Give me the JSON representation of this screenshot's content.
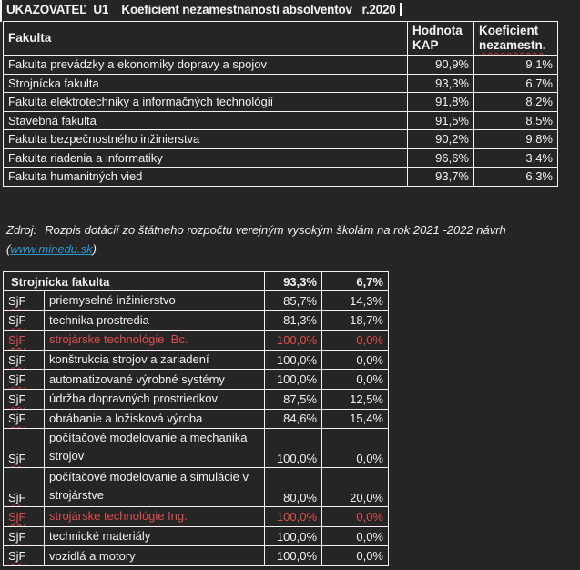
{
  "title": "UKAZOVATEĽ  U1    Koeficient nezamestnanosti absolventov   r.2020",
  "colors": {
    "background": "#252525",
    "text": "#f2f2f2",
    "border": "#f2f2f2",
    "red_text": "#df4f4f",
    "squiggle": "#c33232",
    "link": "#2f9ad2"
  },
  "table1": {
    "headers": {
      "fakulta": "Fakulta",
      "kap_line1": "Hodnota",
      "kap_line2": "KAP",
      "koef_line1": "Koeficient",
      "koef_line2": "nezamestn."
    },
    "rows": [
      {
        "name": "Fakulta prevádzky a ekonomiky dopravy a spojov",
        "kap": "90,9%",
        "koef": "9,1%"
      },
      {
        "name": "Strojnícka fakulta",
        "kap": "93,3%",
        "koef": "6,7%"
      },
      {
        "name": "Fakulta elektrotechniky a informačných technológií",
        "kap": "91,8%",
        "koef": "8,2%"
      },
      {
        "name": "Stavebná fakulta",
        "kap": "91,5%",
        "koef": "8,5%"
      },
      {
        "name": "Fakulta bezpečnostného inžinierstva",
        "kap": "90,2%",
        "koef": "9,8%"
      },
      {
        "name": "Fakulta riadenia a informatiky",
        "kap": "96,6%",
        "koef": "3,4%"
      },
      {
        "name": "Fakulta humanitných vied",
        "kap": "93,7%",
        "koef": "6,3%"
      }
    ]
  },
  "source": {
    "label": "Zdroj:",
    "text": "Rozpis dotácií zo štátneho rozpočtu verejným vysokým školám na rok 2021 -2022 návrh",
    "open_paren": "(",
    "link": "www.minedu.sk",
    "close_paren": ")"
  },
  "table2": {
    "header": {
      "name": "Strojnícka fakulta",
      "kap": "93,3%",
      "koef": "6,7%"
    },
    "rows": [
      {
        "code": "SjF",
        "name": "priemyselné inžinierstvo",
        "kap": "85,7%",
        "koef": "14,3%",
        "red": false,
        "tall": false
      },
      {
        "code": "SjF",
        "name": "technika prostredia",
        "kap": "81,3%",
        "koef": "18,7%",
        "red": false,
        "tall": false
      },
      {
        "code": "SjF",
        "name": "strojárske technológie  Bc.",
        "kap": "100,0%",
        "koef": "0,0%",
        "red": true,
        "tall": false
      },
      {
        "code": "SjF",
        "name": "konštrukcia strojov a zariadení",
        "kap": "100,0%",
        "koef": "0,0%",
        "red": false,
        "tall": false
      },
      {
        "code": "SjF",
        "name": "automatizované výrobné systémy",
        "kap": "100,0%",
        "koef": "0,0%",
        "red": false,
        "tall": false
      },
      {
        "code": "SjF",
        "name": "údržba dopravných prostriedkov",
        "kap": "87,5%",
        "koef": "12,5%",
        "red": false,
        "tall": false
      },
      {
        "code": "SjF",
        "name": "obrábanie a ložisková výroba",
        "kap": "84,6%",
        "koef": "15,4%",
        "red": false,
        "tall": false
      },
      {
        "code": "SjF",
        "name": "počítačové modelovanie a mechanika strojov",
        "kap": "100,0%",
        "koef": "0,0%",
        "red": false,
        "tall": true
      },
      {
        "code": "SjF",
        "name": "počítačové modelovanie a simulácie v strojárstve",
        "kap": "80,0%",
        "koef": "20,0%",
        "red": false,
        "tall": true
      },
      {
        "code": "SjF",
        "name": "strojárske technológie Ing.",
        "kap": "100,0%",
        "koef": "0,0%",
        "red": true,
        "tall": false
      },
      {
        "code": "SjF",
        "name": "technické materiály",
        "kap": "100,0%",
        "koef": "0,0%",
        "red": false,
        "tall": false
      },
      {
        "code": "SjF",
        "name": "vozidlá a motory",
        "kap": "100,0%",
        "koef": "0,0%",
        "red": false,
        "tall": false
      }
    ]
  }
}
